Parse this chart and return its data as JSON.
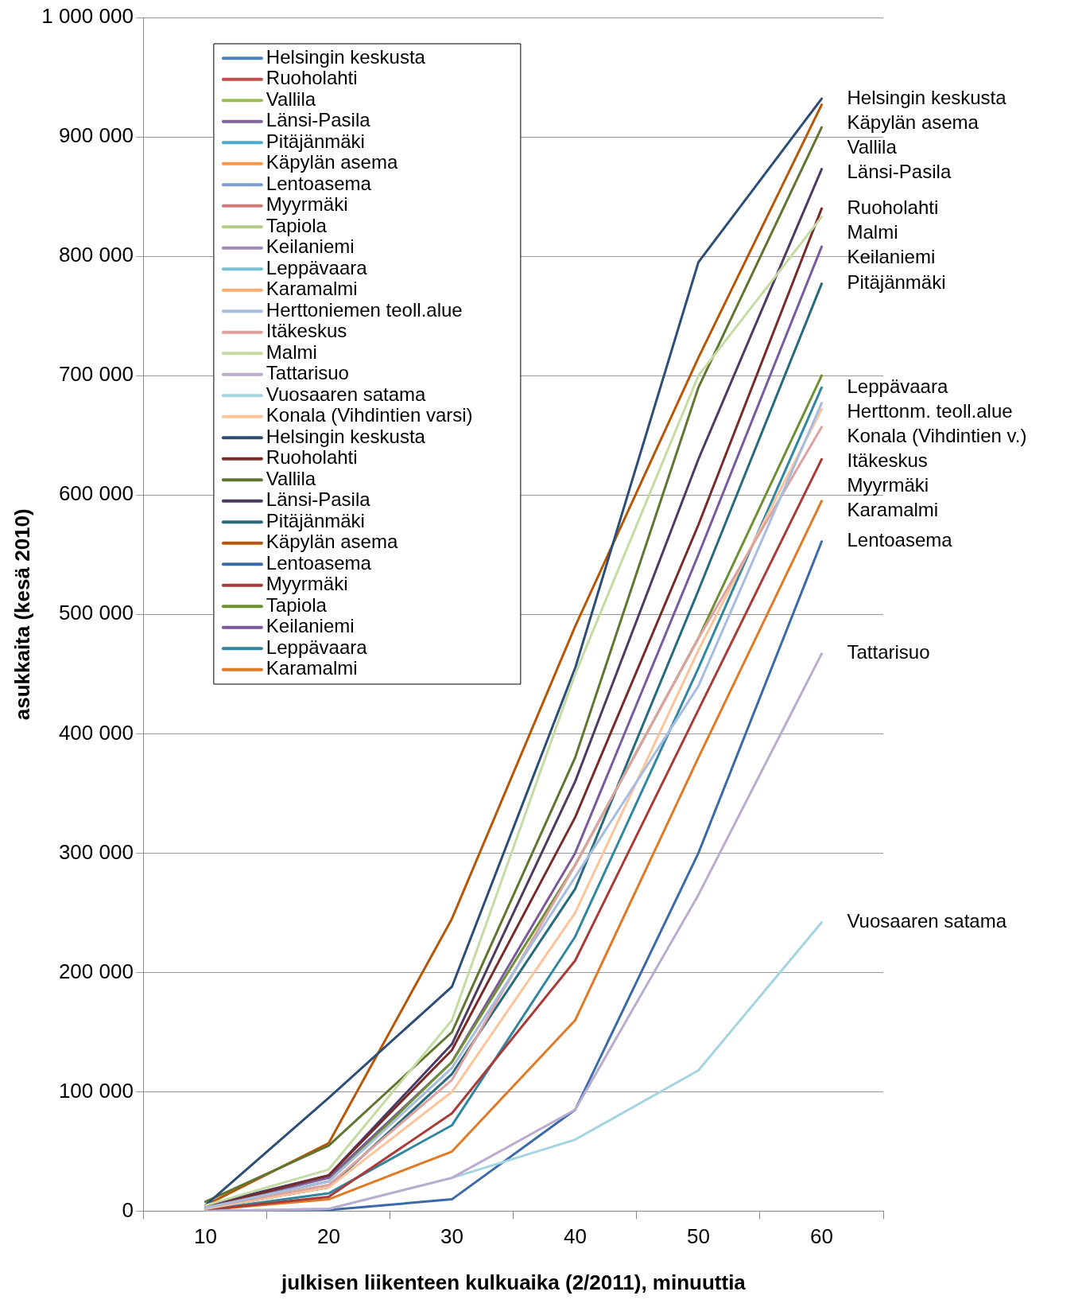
{
  "chart_data": {
    "type": "line",
    "xlabel": "julkisen liikenteen kulkuaika (2/2011), minuuttia",
    "ylabel": "asukkaita (kesä 2010)",
    "categories": [
      "10",
      "20",
      "30",
      "40",
      "50",
      "60"
    ],
    "ylim": [
      0,
      1000000
    ],
    "yticks": [
      {
        "value": 0,
        "label": "0"
      },
      {
        "value": 100000,
        "label": "100 000"
      },
      {
        "value": 200000,
        "label": "200 000"
      },
      {
        "value": 300000,
        "label": "300 000"
      },
      {
        "value": 400000,
        "label": "400 000"
      },
      {
        "value": 500000,
        "label": "500 000"
      },
      {
        "value": 600000,
        "label": "600 000"
      },
      {
        "value": 700000,
        "label": "700 000"
      },
      {
        "value": 800000,
        "label": "800 000"
      },
      {
        "value": 900000,
        "label": "900 000"
      },
      {
        "value": 1000000,
        "label": "1 000 000"
      }
    ],
    "grid": "y",
    "legend": "top left",
    "marker": "none",
    "line_style": "solid",
    "series": [
      {
        "name": "Helsingin keskusta",
        "color": "#4f81bd",
        "values": [
          null,
          null,
          null,
          null,
          null,
          null
        ]
      },
      {
        "name": "Ruoholahti",
        "color": "#c0504d",
        "values": [
          null,
          null,
          null,
          null,
          null,
          null
        ]
      },
      {
        "name": "Vallila",
        "color": "#9bbb59",
        "values": [
          null,
          null,
          null,
          null,
          null,
          null
        ]
      },
      {
        "name": "Länsi-Pasila",
        "color": "#8064a2",
        "values": [
          null,
          null,
          null,
          null,
          null,
          null
        ]
      },
      {
        "name": "Pitäjänmäki",
        "color": "#4bacc6",
        "values": [
          null,
          null,
          null,
          null,
          null,
          null
        ]
      },
      {
        "name": "Käpylän asema",
        "color": "#f79646",
        "values": [
          null,
          null,
          null,
          null,
          null,
          null
        ]
      },
      {
        "name": "Lentoasema",
        "color": "#7ba0cd",
        "values": [
          null,
          null,
          null,
          null,
          null,
          null
        ]
      },
      {
        "name": "Myyrmäki",
        "color": "#d07b78",
        "values": [
          null,
          null,
          null,
          null,
          null,
          null
        ]
      },
      {
        "name": "Tapiola",
        "color": "#b3cd85",
        "values": [
          null,
          null,
          null,
          null,
          null,
          null
        ]
      },
      {
        "name": "Keilaniemi",
        "color": "#a08ab8",
        "values": [
          null,
          null,
          null,
          null,
          null,
          null
        ]
      },
      {
        "name": "Leppävaara",
        "color": "#78c0d4",
        "values": [
          null,
          null,
          null,
          null,
          null,
          null
        ]
      },
      {
        "name": "Karamalmi",
        "color": "#f9ad6f",
        "values": [
          null,
          null,
          null,
          null,
          null,
          null
        ]
      },
      {
        "name": "Herttoniemen teoll.alue",
        "color": "#a6bde0",
        "values": [
          3000,
          25000,
          120000,
          280000,
          440000,
          677000
        ]
      },
      {
        "name": "Itäkeskus",
        "color": "#dda3a1",
        "values": [
          3000,
          22000,
          110000,
          290000,
          480000,
          657000
        ]
      },
      {
        "name": "Malmi",
        "color": "#c6dba4",
        "values": [
          5000,
          35000,
          160000,
          450000,
          700000,
          833000
        ]
      },
      {
        "name": "Tattarisuo",
        "color": "#bbaccf",
        "values": [
          0,
          2000,
          28000,
          85000,
          265000,
          467000
        ]
      },
      {
        "name": "Vuosaaren satama",
        "color": "#a5d4e1",
        "values": [
          0,
          2000,
          28000,
          60000,
          118000,
          242000
        ]
      },
      {
        "name": "Konala (Vihdintien varsi)",
        "color": "#fbc49a",
        "values": [
          2000,
          20000,
          100000,
          250000,
          470000,
          672000
        ]
      },
      {
        "name": "Helsingin keskusta",
        "color": "#2c4d75",
        "values": [
          5000,
          95000,
          188000,
          455000,
          795000,
          932000
        ]
      },
      {
        "name": "Ruoholahti",
        "color": "#772c2a",
        "values": [
          3000,
          30000,
          135000,
          330000,
          575000,
          840000
        ]
      },
      {
        "name": "Vallila",
        "color": "#5f7530",
        "values": [
          8000,
          55000,
          150000,
          380000,
          690000,
          908000
        ]
      },
      {
        "name": "Länsi-Pasila",
        "color": "#4d3b62",
        "values": [
          5000,
          30000,
          140000,
          360000,
          630000,
          873000
        ]
      },
      {
        "name": "Pitäjänmäki",
        "color": "#276a7c",
        "values": [
          2000,
          20000,
          115000,
          270000,
          520000,
          777000
        ]
      },
      {
        "name": "Käpylän asema",
        "color": "#b65708",
        "values": [
          5000,
          57000,
          245000,
          490000,
          715000,
          927000
        ]
      },
      {
        "name": "Lentoasema",
        "color": "#3c6aa8",
        "values": [
          0,
          1000,
          10000,
          85000,
          300000,
          561000
        ]
      },
      {
        "name": "Myyrmäki",
        "color": "#a83c38",
        "values": [
          1000,
          12000,
          82000,
          210000,
          420000,
          630000
        ]
      },
      {
        "name": "Tapiola",
        "color": "#6f8f33",
        "values": [
          3000,
          25000,
          125000,
          290000,
          480000,
          700000
        ]
      },
      {
        "name": "Keilaniemi",
        "color": "#7a5a9c",
        "values": [
          3000,
          28000,
          125000,
          300000,
          550000,
          808000
        ]
      },
      {
        "name": "Leppävaara",
        "color": "#31879f",
        "values": [
          1000,
          15000,
          72000,
          230000,
          455000,
          690000
        ]
      },
      {
        "name": "Karamalmi",
        "color": "#e07a27",
        "values": [
          1000,
          10000,
          50000,
          160000,
          380000,
          595000
        ]
      }
    ],
    "annotations": [
      {
        "text": "Helsingin keskusta",
        "x": "60",
        "y": 932000
      },
      {
        "text": "Käpylän asema",
        "x": "60",
        "y": 927000
      },
      {
        "text": "Vallila",
        "x": "60",
        "y": 908000
      },
      {
        "text": "Länsi-Pasila",
        "x": "60",
        "y": 873000
      },
      {
        "text": "Ruoholahti",
        "x": "60",
        "y": 840000
      },
      {
        "text": "Malmi",
        "x": "60",
        "y": 833000
      },
      {
        "text": "Keilaniemi",
        "x": "60",
        "y": 808000
      },
      {
        "text": "Pitäjänmäki",
        "x": "60",
        "y": 777000
      },
      {
        "text": "Leppävaara",
        "x": "60",
        "y": 690000
      },
      {
        "text": "Herttonm. teoll.alue",
        "x": "60",
        "y": 677000
      },
      {
        "text": "Konala (Vihdintien v.)",
        "x": "60",
        "y": 672000
      },
      {
        "text": "Itäkeskus",
        "x": "60",
        "y": 657000
      },
      {
        "text": "Myyrmäki",
        "x": "60",
        "y": 630000
      },
      {
        "text": "Karamalmi",
        "x": "60",
        "y": 595000
      },
      {
        "text": "Lentoasema",
        "x": "60",
        "y": 561000
      },
      {
        "text": "Tattarisuo",
        "x": "60",
        "y": 467000
      },
      {
        "text": "Vuosaaren satama",
        "x": "60",
        "y": 242000
      }
    ]
  }
}
